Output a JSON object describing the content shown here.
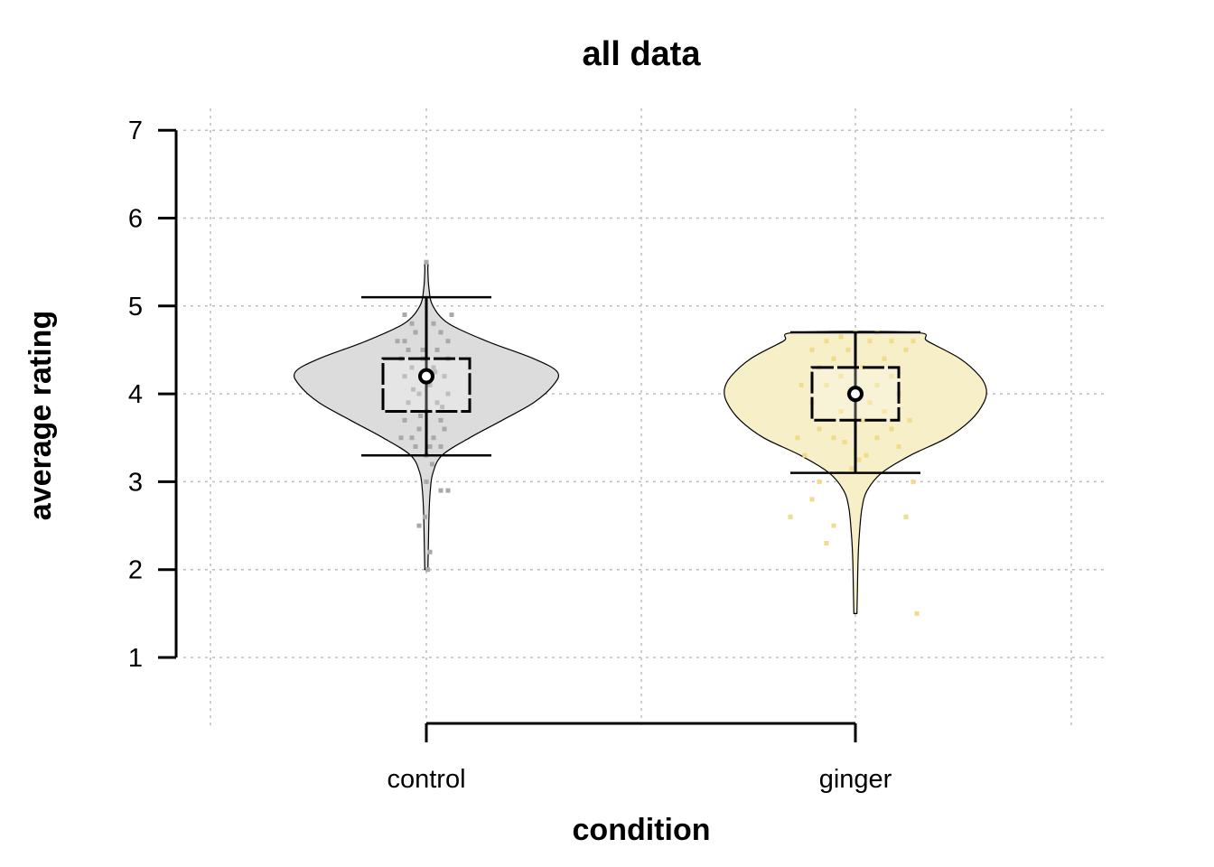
{
  "chart_data": {
    "type": "violin",
    "title": "all data",
    "xlabel": "condition",
    "ylabel": "average rating",
    "ylim": [
      1,
      7
    ],
    "yticks": [
      1,
      2,
      3,
      4,
      5,
      6,
      7
    ],
    "grid": true,
    "categories": [
      "control",
      "ginger"
    ],
    "series": [
      {
        "category": "control",
        "fill_color": "#dcdcdc",
        "point_color": "#a9a9a9",
        "mean": 4.2,
        "box_lower": 3.8,
        "box_upper": 4.4,
        "whisker_low": 3.3,
        "whisker_high": 5.1,
        "min": 2.0,
        "max": 5.5,
        "density": [
          [
            2.0,
            0.012
          ],
          [
            2.3,
            0.016
          ],
          [
            2.6,
            0.02
          ],
          [
            2.9,
            0.03
          ],
          [
            3.1,
            0.05
          ],
          [
            3.3,
            0.12
          ],
          [
            3.5,
            0.33
          ],
          [
            3.7,
            0.58
          ],
          [
            3.9,
            0.82
          ],
          [
            4.1,
            0.97
          ],
          [
            4.25,
            1.0
          ],
          [
            4.4,
            0.82
          ],
          [
            4.6,
            0.46
          ],
          [
            4.8,
            0.17
          ],
          [
            5.0,
            0.05
          ],
          [
            5.2,
            0.02
          ],
          [
            5.4,
            0.012
          ],
          [
            5.5,
            0.012
          ]
        ],
        "points": [
          [
            0.0,
            5.5
          ],
          [
            0.2,
            2.9
          ],
          [
            0.3,
            2.9
          ],
          [
            -0.1,
            2.5
          ],
          [
            0.05,
            2.2
          ],
          [
            0.02,
            2.0
          ],
          [
            -0.3,
            4.9
          ],
          [
            -0.2,
            4.8
          ],
          [
            0.1,
            4.8
          ],
          [
            0.35,
            4.9
          ],
          [
            -0.4,
            4.6
          ],
          [
            -0.15,
            4.7
          ],
          [
            0.2,
            4.7
          ],
          [
            -0.25,
            4.5
          ],
          [
            -0.05,
            4.5
          ],
          [
            0.15,
            4.5
          ],
          [
            0.3,
            4.4
          ],
          [
            -0.35,
            4.4
          ],
          [
            0.1,
            4.3
          ],
          [
            -0.2,
            4.3
          ],
          [
            0.25,
            4.2
          ],
          [
            -0.3,
            4.2
          ],
          [
            0.05,
            4.1
          ],
          [
            -0.1,
            4.0
          ],
          [
            0.3,
            4.0
          ],
          [
            -0.25,
            3.9
          ],
          [
            0.15,
            3.9
          ],
          [
            0.0,
            3.8
          ],
          [
            -0.3,
            3.7
          ],
          [
            0.2,
            3.7
          ],
          [
            -0.1,
            3.6
          ],
          [
            0.25,
            3.6
          ],
          [
            -0.2,
            3.5
          ],
          [
            0.1,
            3.5
          ],
          [
            -0.35,
            3.5
          ],
          [
            0.05,
            3.4
          ],
          [
            -0.15,
            3.4
          ],
          [
            0.2,
            3.4
          ],
          [
            0.0,
            3.3
          ],
          [
            -0.3,
            4.6
          ],
          [
            0.3,
            4.6
          ],
          [
            -0.05,
            4.4
          ],
          [
            0.12,
            4.25
          ],
          [
            -0.18,
            4.05
          ],
          [
            0.22,
            3.85
          ],
          [
            -0.08,
            3.75
          ],
          [
            0.08,
            3.2
          ],
          [
            0.0,
            3.0
          ],
          [
            -0.02,
            2.6
          ]
        ]
      },
      {
        "category": "ginger",
        "fill_color": "#f6efc8",
        "point_color": "#f1dc8c",
        "mean": 4.0,
        "box_lower": 3.7,
        "box_upper": 4.3,
        "whisker_low": 3.1,
        "whisker_high": 4.7,
        "min": 1.5,
        "max": 4.7,
        "density": [
          [
            1.5,
            0.012
          ],
          [
            1.8,
            0.016
          ],
          [
            2.1,
            0.02
          ],
          [
            2.4,
            0.03
          ],
          [
            2.7,
            0.05
          ],
          [
            2.9,
            0.09
          ],
          [
            3.1,
            0.2
          ],
          [
            3.3,
            0.42
          ],
          [
            3.5,
            0.7
          ],
          [
            3.7,
            0.88
          ],
          [
            3.9,
            0.98
          ],
          [
            4.05,
            1.0
          ],
          [
            4.2,
            0.95
          ],
          [
            4.4,
            0.8
          ],
          [
            4.6,
            0.55
          ],
          [
            4.7,
            0.45
          ]
        ],
        "points": [
          [
            0.85,
            1.5
          ],
          [
            -0.4,
            2.3
          ],
          [
            -0.3,
            2.5
          ],
          [
            0.7,
            2.6
          ],
          [
            -0.9,
            2.6
          ],
          [
            -0.6,
            2.8
          ],
          [
            0.8,
            3.0
          ],
          [
            -0.5,
            3.0
          ],
          [
            0.6,
            3.4
          ],
          [
            -0.7,
            3.3
          ],
          [
            0.3,
            3.5
          ],
          [
            -0.3,
            3.5
          ],
          [
            0.5,
            3.6
          ],
          [
            -0.5,
            3.6
          ],
          [
            0.1,
            3.7
          ],
          [
            -0.2,
            3.8
          ],
          [
            0.4,
            3.8
          ],
          [
            -0.6,
            3.9
          ],
          [
            0.2,
            3.9
          ],
          [
            -0.1,
            4.0
          ],
          [
            0.6,
            4.0
          ],
          [
            -0.4,
            4.1
          ],
          [
            0.3,
            4.1
          ],
          [
            -0.2,
            4.2
          ],
          [
            0.5,
            4.2
          ],
          [
            -0.5,
            4.3
          ],
          [
            0.1,
            4.3
          ],
          [
            -0.3,
            4.4
          ],
          [
            0.4,
            4.4
          ],
          [
            -0.1,
            4.5
          ],
          [
            0.7,
            4.5
          ],
          [
            -0.6,
            4.5
          ],
          [
            0.2,
            4.6
          ],
          [
            -0.4,
            4.6
          ],
          [
            0.5,
            4.6
          ],
          [
            0.0,
            4.7
          ],
          [
            0.3,
            4.7
          ],
          [
            -0.2,
            4.65
          ],
          [
            0.8,
            4.6
          ],
          [
            -0.75,
            4.1
          ],
          [
            0.75,
            3.7
          ],
          [
            -0.8,
            3.5
          ],
          [
            0.05,
            3.25
          ],
          [
            -0.05,
            3.15
          ],
          [
            0.15,
            3.3
          ],
          [
            -0.15,
            3.45
          ]
        ]
      }
    ]
  }
}
